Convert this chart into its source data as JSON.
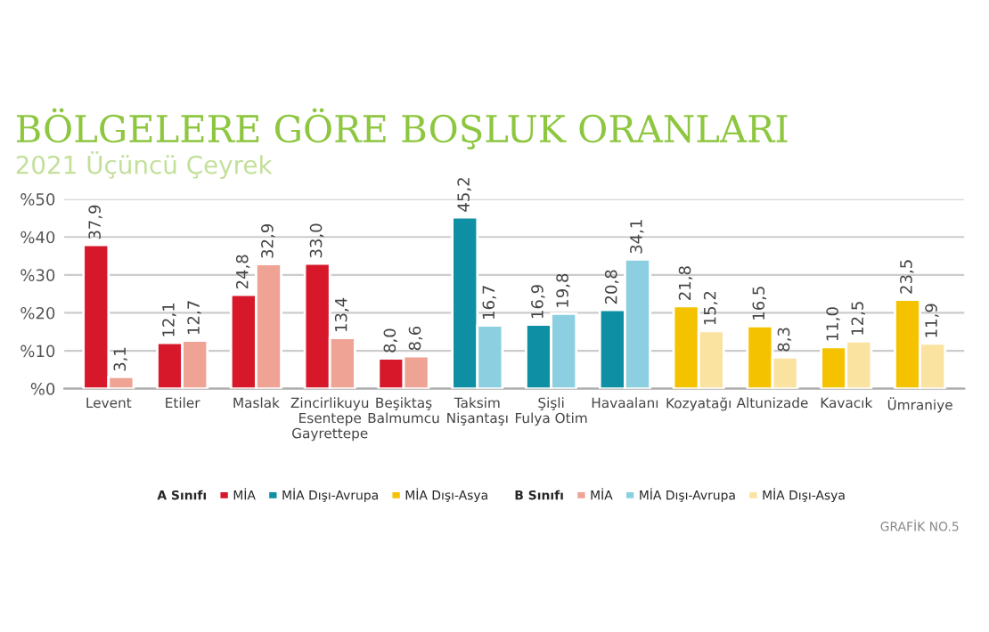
{
  "chart_data": {
    "type": "bar",
    "title": "BÖLGELERE GÖRE BOŞLUK ORANLARI",
    "subtitle": "2021 Üçüncü Çeyrek",
    "categories": [
      "Levent",
      "Etiler",
      "Maslak",
      "Zincirlikuyu\nEsentepe\nGayrettepe",
      "Beşiktaş\nBalmumcu",
      "Taksim\nNişantaşı",
      "Şişli\nFulya Otim",
      "Havaalanı",
      "Kozyatağı",
      "Altunizade",
      "Kavacık",
      "Ümraniye"
    ],
    "series": [
      {
        "name": "MİA",
        "color": "#d7182a",
        "values": [
          37.9,
          12.1,
          24.8,
          33.0,
          8.0,
          null,
          null,
          null,
          null,
          null,
          null,
          null
        ],
        "value_labels": [
          "37,9",
          "12,1",
          "24,8",
          "33,0",
          "8,0",
          null,
          null,
          null,
          null,
          null,
          null,
          null
        ]
      },
      {
        "name": "MİA Dışı-Avrupa",
        "color": "#0e8fa3",
        "values": [
          null,
          null,
          null,
          null,
          null,
          45.2,
          16.9,
          20.8,
          null,
          null,
          null,
          null
        ],
        "value_labels": [
          null,
          null,
          null,
          null,
          null,
          "45,2",
          "16,9",
          "20,8",
          null,
          null,
          null,
          null
        ]
      },
      {
        "name": "MİA Dışı-Asya",
        "color": "#f5c200",
        "values": [
          null,
          null,
          null,
          null,
          null,
          null,
          null,
          null,
          21.8,
          16.5,
          11.0,
          23.5
        ],
        "value_labels": [
          null,
          null,
          null,
          null,
          null,
          null,
          null,
          null,
          "21,8",
          "16,5",
          "11,0",
          "23,5"
        ]
      },
      {
        "name": "MİA",
        "color": "#eea394",
        "values": [
          3.1,
          12.7,
          32.9,
          13.4,
          8.6,
          null,
          null,
          null,
          null,
          null,
          null,
          null
        ],
        "value_labels": [
          "3,1",
          "12,7",
          "32,9",
          "13,4",
          "8,6",
          null,
          null,
          null,
          null,
          null,
          null,
          null
        ]
      },
      {
        "name": "MİA Dışı-Avrupa",
        "color": "#8ccfe0",
        "values": [
          null,
          null,
          null,
          null,
          null,
          16.7,
          19.8,
          34.1,
          null,
          null,
          null,
          null
        ],
        "value_labels": [
          null,
          null,
          null,
          null,
          null,
          "16,7",
          "19,8",
          "34,1",
          null,
          null,
          null,
          null
        ]
      },
      {
        "name": "MİA Dışı-Asya",
        "color": "#fae3a0",
        "values": [
          null,
          null,
          null,
          null,
          null,
          null,
          null,
          null,
          15.2,
          8.3,
          12.5,
          11.9
        ],
        "value_labels": [
          null,
          null,
          null,
          null,
          null,
          null,
          null,
          null,
          "15,2",
          "8,3",
          "12,5",
          "11,9"
        ]
      }
    ],
    "ylim": [
      0,
      50
    ],
    "yticks": [
      {
        "value": 0,
        "label": "%0"
      },
      {
        "value": 10,
        "label": "%10"
      },
      {
        "value": 20,
        "label": "%20"
      },
      {
        "value": 30,
        "label": "%30"
      },
      {
        "value": 40,
        "label": "%40"
      },
      {
        "value": 50,
        "label": "%50"
      }
    ],
    "grid": "y",
    "legend": "bottom",
    "annotations": [
      "A Sınıfı",
      "B Sınıfı",
      "GRAFİK NO.5"
    ]
  }
}
